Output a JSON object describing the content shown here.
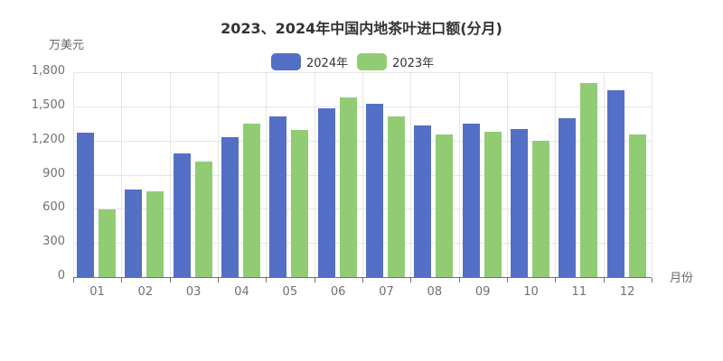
{
  "chart_data": {
    "type": "bar",
    "title": "2023、2024年中国内地茶叶进口额(分月)",
    "xlabel": "月份",
    "ylabel": "万美元",
    "categories": [
      "01",
      "02",
      "03",
      "04",
      "05",
      "06",
      "07",
      "08",
      "09",
      "10",
      "11",
      "12"
    ],
    "series": [
      {
        "name": "2024年",
        "color": "#5470c6",
        "values": [
          1270,
          770,
          1085,
          1230,
          1410,
          1480,
          1520,
          1335,
          1345,
          1300,
          1395,
          1645
        ]
      },
      {
        "name": "2023年",
        "color": "#91cc75",
        "values": [
          595,
          755,
          1015,
          1350,
          1295,
          1575,
          1410,
          1250,
          1280,
          1195,
          1705,
          1250
        ]
      }
    ],
    "yticks": [
      "0",
      "300",
      "600",
      "900",
      "1,200",
      "1,500",
      "1,800"
    ],
    "ylim": [
      0,
      1800
    ],
    "grid": true,
    "legend_position": "top"
  }
}
